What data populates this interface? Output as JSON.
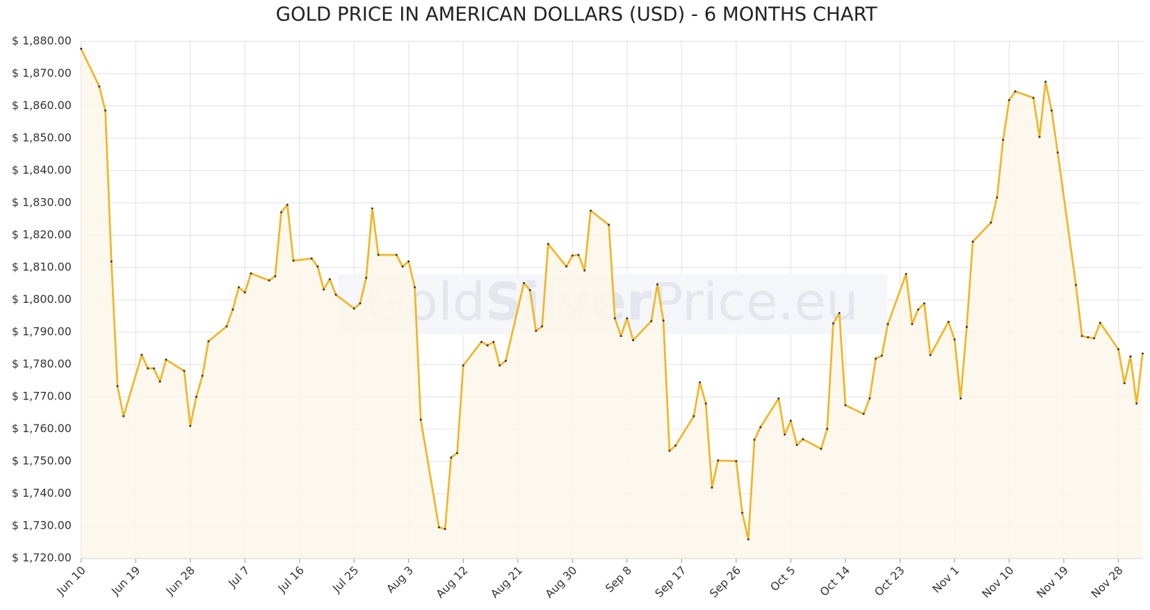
{
  "chart_data": {
    "type": "line",
    "title": "GOLD PRICE IN AMERICAN DOLLARS (USD) - 6 MONTHS CHART",
    "watermark": [
      "Gold",
      "Silver",
      "Price.eu"
    ],
    "color": "#f0b62a",
    "fill": "#fdf7ea",
    "grid": true,
    "x": [
      0,
      3,
      4,
      5,
      6,
      7,
      10,
      11,
      12,
      13,
      14,
      17,
      18,
      19,
      20,
      21,
      24,
      25,
      26,
      27,
      28,
      31,
      32,
      33,
      34,
      35,
      38,
      39,
      40,
      41,
      42,
      45,
      46,
      47,
      48,
      49,
      52,
      53,
      54,
      55,
      56,
      59,
      60,
      61,
      62,
      63,
      66,
      67,
      68,
      69,
      70,
      73,
      74,
      75,
      76,
      77,
      80,
      81,
      82,
      83,
      84,
      87,
      88,
      89,
      90,
      91,
      94,
      95,
      96,
      97,
      98,
      101,
      102,
      103,
      104,
      105,
      108,
      109,
      110,
      111,
      112,
      115,
      116,
      117,
      118,
      119,
      122,
      123,
      124,
      125,
      126,
      129,
      130,
      131,
      132,
      133,
      136,
      137,
      138,
      139,
      140,
      143,
      144,
      145,
      146,
      147,
      150,
      151,
      152,
      153,
      154,
      157,
      158,
      159,
      160,
      161,
      164,
      165,
      166,
      167,
      168,
      171,
      172,
      173,
      174,
      175
    ],
    "values": [
      1877.7,
      1866,
      1858.6,
      1811.9,
      1773.3,
      1764,
      1783,
      1778.8,
      1778.8,
      1774.7,
      1781.5,
      1778,
      1761,
      1770,
      1776.5,
      1787.2,
      1791.8,
      1797,
      1803.9,
      1802.3,
      1808.2,
      1806,
      1807.3,
      1827.1,
      1829.4,
      1812.1,
      1812.8,
      1810.3,
      1803.2,
      1806.4,
      1801.6,
      1797.3,
      1798.9,
      1806.8,
      1828.3,
      1813.9,
      1813.9,
      1810.3,
      1811.9,
      1803.9,
      1762.9,
      1729.6,
      1729.1,
      1751.2,
      1752.6,
      1779.7,
      1787,
      1785.9,
      1787,
      1779.7,
      1781.1,
      1805.2,
      1803,
      1790.4,
      1791.8,
      1817.3,
      1810.3,
      1813.7,
      1813.9,
      1809.1,
      1827.6,
      1823.2,
      1794.3,
      1788.8,
      1794.3,
      1787.5,
      1793.4,
      1804.8,
      1793.6,
      1753.3,
      1754.9,
      1764,
      1774.5,
      1767.9,
      1741.9,
      1750.3,
      1750.1,
      1734.1,
      1725.9,
      1756.7,
      1760.6,
      1769.5,
      1758.3,
      1762.6,
      1755.1,
      1756.9,
      1753.9,
      1760.1,
      1792.7,
      1795.9,
      1767.4,
      1764.7,
      1769.5,
      1781.8,
      1782.7,
      1792.5,
      1808,
      1792.5,
      1797,
      1798.9,
      1782.9,
      1793.2,
      1787.7,
      1769.5,
      1791.6,
      1818,
      1823.9,
      1831.7,
      1849.5,
      1861.8,
      1864.5,
      1862.5,
      1850.4,
      1867.5,
      1858.6,
      1845.6,
      1804.6,
      1788.8,
      1788.4,
      1788.1,
      1792.9,
      1784.7,
      1774.2,
      1782.5,
      1767.9,
      1783.4
    ],
    "xlim": [
      0,
      175
    ],
    "xticks": [
      {
        "value": 0,
        "label": "Jun 10"
      },
      {
        "value": 9,
        "label": "Jun 19"
      },
      {
        "value": 18,
        "label": "Jun 28"
      },
      {
        "value": 27,
        "label": "Jul 7"
      },
      {
        "value": 36,
        "label": "Jul 16"
      },
      {
        "value": 45,
        "label": "Jul 25"
      },
      {
        "value": 54,
        "label": "Aug 3"
      },
      {
        "value": 63,
        "label": "Aug 12"
      },
      {
        "value": 72,
        "label": "Aug 21"
      },
      {
        "value": 81,
        "label": "Aug 30"
      },
      {
        "value": 90,
        "label": "Sep 8"
      },
      {
        "value": 99,
        "label": "Sep 17"
      },
      {
        "value": 108,
        "label": "Sep 26"
      },
      {
        "value": 117,
        "label": "Oct 5"
      },
      {
        "value": 126,
        "label": "Oct 14"
      },
      {
        "value": 135,
        "label": "Oct 23"
      },
      {
        "value": 144,
        "label": "Nov 1"
      },
      {
        "value": 153,
        "label": "Nov 10"
      },
      {
        "value": 162,
        "label": "Nov 19"
      },
      {
        "value": 171,
        "label": "Nov 28"
      }
    ],
    "ylim": [
      1720,
      1880
    ],
    "yticks": [
      {
        "value": 1720,
        "label": "$ 1,720.00"
      },
      {
        "value": 1730,
        "label": "$ 1,730.00"
      },
      {
        "value": 1740,
        "label": "$ 1,740.00"
      },
      {
        "value": 1750,
        "label": "$ 1,750.00"
      },
      {
        "value": 1760,
        "label": "$ 1,760.00"
      },
      {
        "value": 1770,
        "label": "$ 1,770.00"
      },
      {
        "value": 1780,
        "label": "$ 1,780.00"
      },
      {
        "value": 1790,
        "label": "$ 1,790.00"
      },
      {
        "value": 1800,
        "label": "$ 1,800.00"
      },
      {
        "value": 1810,
        "label": "$ 1,810.00"
      },
      {
        "value": 1820,
        "label": "$ 1,820.00"
      },
      {
        "value": 1830,
        "label": "$ 1,830.00"
      },
      {
        "value": 1840,
        "label": "$ 1,840.00"
      },
      {
        "value": 1850,
        "label": "$ 1,850.00"
      },
      {
        "value": 1860,
        "label": "$ 1,860.00"
      },
      {
        "value": 1870,
        "label": "$ 1,870.00"
      },
      {
        "value": 1880,
        "label": "$ 1,880.00"
      }
    ]
  }
}
